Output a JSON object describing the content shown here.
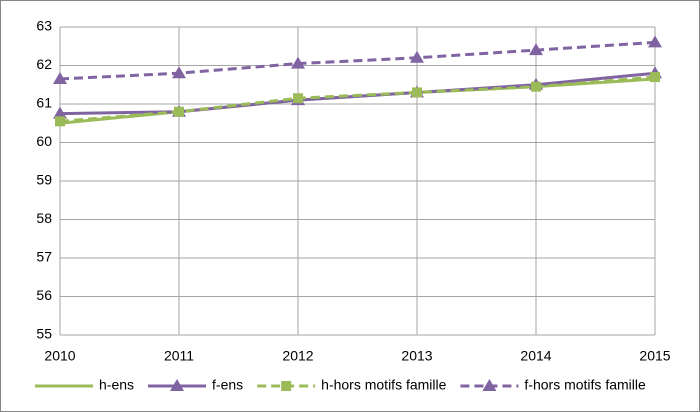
{
  "chart_data": {
    "type": "line",
    "x": [
      2010,
      2011,
      2012,
      2013,
      2014,
      2015
    ],
    "xlim": [
      2010,
      2015
    ],
    "xticks": [
      2010,
      2011,
      2012,
      2013,
      2014,
      2015
    ],
    "ylim": [
      55,
      63
    ],
    "yticks": [
      55,
      56,
      57,
      58,
      59,
      60,
      61,
      62,
      63
    ],
    "grid": true,
    "legend": "bottom",
    "series": [
      {
        "name": "h-ens",
        "color": "#9bbb59",
        "dash": false,
        "marker": "none",
        "values": [
          60.5,
          60.8,
          61.1,
          61.3,
          61.45,
          61.65
        ]
      },
      {
        "name": "f-ens",
        "color": "#8064a2",
        "dash": false,
        "marker": "triangle",
        "values": [
          60.75,
          60.8,
          61.1,
          61.3,
          61.5,
          61.8
        ]
      },
      {
        "name": "h-hors motifs famille",
        "color": "#9bbb59",
        "dash": true,
        "marker": "square",
        "values": [
          60.55,
          60.8,
          61.15,
          61.3,
          61.45,
          61.7
        ]
      },
      {
        "name": "f-hors motifs famille",
        "color": "#8064a2",
        "dash": true,
        "marker": "triangle",
        "values": [
          61.65,
          61.8,
          62.05,
          62.2,
          62.4,
          62.6
        ]
      }
    ]
  }
}
